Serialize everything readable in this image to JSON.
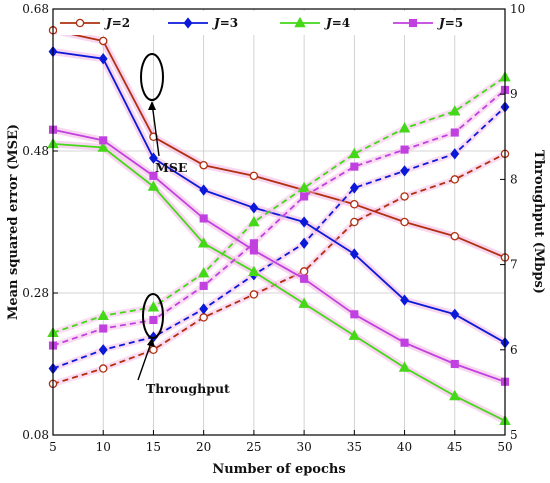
{
  "chart_data": {
    "type": "line",
    "x": [
      5,
      10,
      15,
      20,
      25,
      30,
      35,
      40,
      45,
      50
    ],
    "xlabel": "Number of epochs",
    "ylabel_left": "Mean squared error (MSE)",
    "ylabel_right": "Throughput (Mbps)",
    "xlim": [
      5,
      50
    ],
    "ylim_left": [
      0.08,
      0.68
    ],
    "ylim_right": [
      5,
      10
    ],
    "xticks": [
      "5",
      "10",
      "15",
      "20",
      "25",
      "30",
      "35",
      "40",
      "45",
      "50"
    ],
    "yticks_left": [
      "0.08",
      "0.28",
      "0.48",
      "0.68"
    ],
    "yticks_right": [
      "5",
      "6",
      "7",
      "8",
      "9",
      "10"
    ],
    "grid": true,
    "legend_position": "top",
    "legend_prefix": "J",
    "series": [
      {
        "name": "=2",
        "color": "#b03010",
        "marker": "circle",
        "mse": [
          0.65,
          0.635,
          0.5,
          0.46,
          0.445,
          0.425,
          0.405,
          0.38,
          0.36,
          0.33
        ],
        "throughput": [
          5.6,
          5.78,
          6.0,
          6.38,
          6.65,
          6.92,
          7.5,
          7.8,
          8.0,
          8.3
        ]
      },
      {
        "name": "=3",
        "color": "#0a1ad8",
        "marker": "diamond",
        "mse": [
          0.62,
          0.61,
          0.47,
          0.425,
          0.4,
          0.38,
          0.335,
          0.27,
          0.25,
          0.21
        ],
        "throughput": [
          5.78,
          6.0,
          6.15,
          6.48,
          6.88,
          7.25,
          7.9,
          8.1,
          8.3,
          8.85
        ]
      },
      {
        "name": "=4",
        "color": "#44d818",
        "marker": "triangle",
        "mse": [
          0.49,
          0.485,
          0.43,
          0.35,
          0.31,
          0.265,
          0.22,
          0.175,
          0.135,
          0.1
        ],
        "throughput": [
          6.2,
          6.4,
          6.5,
          6.9,
          7.5,
          7.9,
          8.3,
          8.6,
          8.8,
          9.2
        ]
      },
      {
        "name": "=5",
        "color": "#c040e0",
        "marker": "square",
        "mse": [
          0.51,
          0.495,
          0.445,
          0.385,
          0.34,
          0.3,
          0.25,
          0.21,
          0.18,
          0.155
        ],
        "throughput": [
          6.05,
          6.25,
          6.35,
          6.75,
          7.25,
          7.8,
          8.15,
          8.35,
          8.55,
          9.05
        ]
      }
    ],
    "annotations": [
      "MSE",
      "Throughput"
    ]
  }
}
